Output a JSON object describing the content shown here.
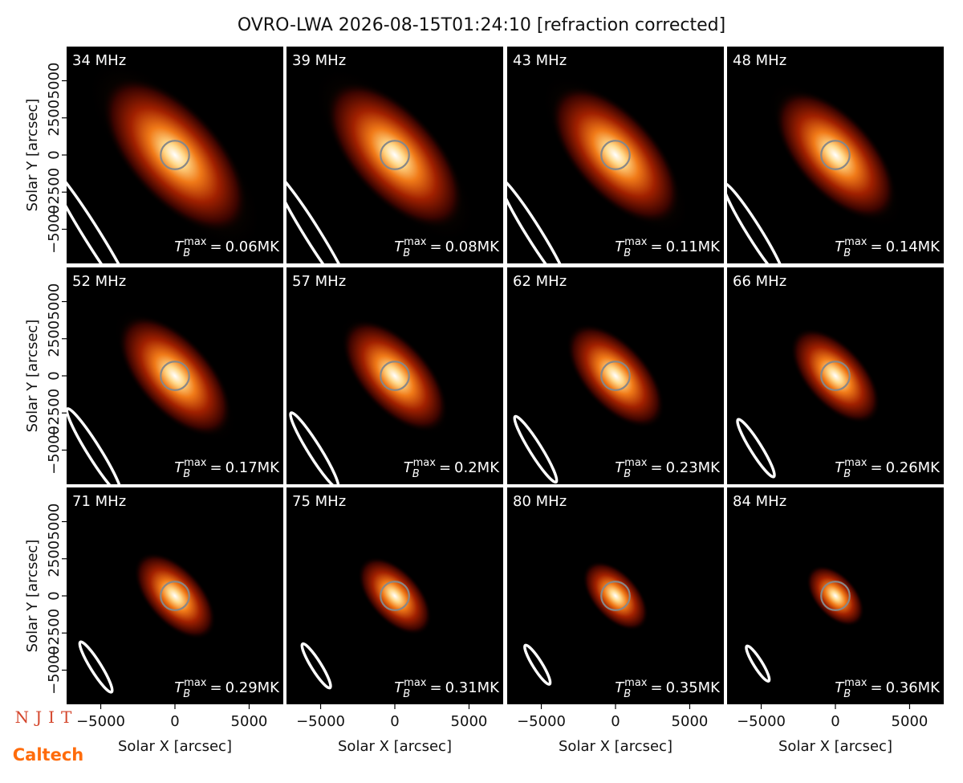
{
  "title": "OVRO-LWA 2026-08-15T01:24:10 [refraction corrected]",
  "annotation_prefix": {
    "symbol": "T",
    "sub": "B",
    "sup": "max",
    "eq": "="
  },
  "logos": [
    "NJIT",
    "Caltech"
  ],
  "chart_data": [
    {
      "type": "image",
      "title": "34 MHz",
      "annotation": "0.06MK",
      "xlim": [
        -7300,
        7300
      ],
      "ylim": [
        -7300,
        7300
      ],
      "ylabel": "Solar Y [arcsec]",
      "yticks": [
        {
          "value": -5000,
          "label": "−5000"
        },
        {
          "value": -2500,
          "label": "−2500"
        },
        0,
        2500,
        5000
      ]
    },
    {
      "type": "image",
      "title": "39 MHz",
      "annotation": "0.08MK",
      "xlim": [
        -7300,
        7300
      ],
      "ylim": [
        -7300,
        7300
      ]
    },
    {
      "type": "image",
      "title": "43 MHz",
      "annotation": "0.11MK",
      "xlim": [
        -7300,
        7300
      ],
      "ylim": [
        -7300,
        7300
      ]
    },
    {
      "type": "image",
      "title": "48 MHz",
      "annotation": "0.14MK",
      "xlim": [
        -7300,
        7300
      ],
      "ylim": [
        -7300,
        7300
      ]
    },
    {
      "type": "image",
      "title": "52 MHz",
      "annotation": "0.17MK",
      "xlim": [
        -7300,
        7300
      ],
      "ylim": [
        -7300,
        7300
      ],
      "ylabel": "Solar Y [arcsec]",
      "yticks": [
        {
          "value": -5000,
          "label": "−5000"
        },
        {
          "value": -2500,
          "label": "−2500"
        },
        0,
        2500,
        5000
      ]
    },
    {
      "type": "image",
      "title": "57 MHz",
      "annotation": "0.2MK",
      "xlim": [
        -7300,
        7300
      ],
      "ylim": [
        -7300,
        7300
      ]
    },
    {
      "type": "image",
      "title": "62 MHz",
      "annotation": "0.23MK",
      "xlim": [
        -7300,
        7300
      ],
      "ylim": [
        -7300,
        7300
      ]
    },
    {
      "type": "image",
      "title": "66 MHz",
      "annotation": "0.26MK",
      "xlim": [
        -7300,
        7300
      ],
      "ylim": [
        -7300,
        7300
      ]
    },
    {
      "type": "image",
      "title": "71 MHz",
      "annotation": "0.29MK",
      "xlim": [
        -7300,
        7300
      ],
      "ylim": [
        -7300,
        7300
      ],
      "ylabel": "Solar Y [arcsec]",
      "yticks": [
        {
          "value": -5000,
          "label": "−5000"
        },
        {
          "value": -2500,
          "label": "−2500"
        },
        0,
        2500,
        5000
      ],
      "xlabel": "Solar X [arcsec]",
      "xticks": [
        {
          "value": -5000,
          "label": "−5000"
        },
        0,
        5000
      ]
    },
    {
      "type": "image",
      "title": "75 MHz",
      "annotation": "0.31MK",
      "xlim": [
        -7300,
        7300
      ],
      "ylim": [
        -7300,
        7300
      ],
      "xlabel": "Solar X [arcsec]",
      "xticks": [
        {
          "value": -5000,
          "label": "−5000"
        },
        0,
        5000
      ]
    },
    {
      "type": "image",
      "title": "80 MHz",
      "annotation": "0.35MK",
      "xlim": [
        -7300,
        7300
      ],
      "ylim": [
        -7300,
        7300
      ],
      "xlabel": "Solar X [arcsec]",
      "xticks": [
        {
          "value": -5000,
          "label": "−5000"
        },
        0,
        5000
      ]
    },
    {
      "type": "image",
      "title": "84 MHz",
      "annotation": "0.36MK",
      "xlim": [
        -7300,
        7300
      ],
      "ylim": [
        -7300,
        7300
      ],
      "xlabel": "Solar X [arcsec]",
      "xticks": [
        {
          "value": -5000,
          "label": "−5000"
        },
        0,
        5000
      ]
    }
  ]
}
